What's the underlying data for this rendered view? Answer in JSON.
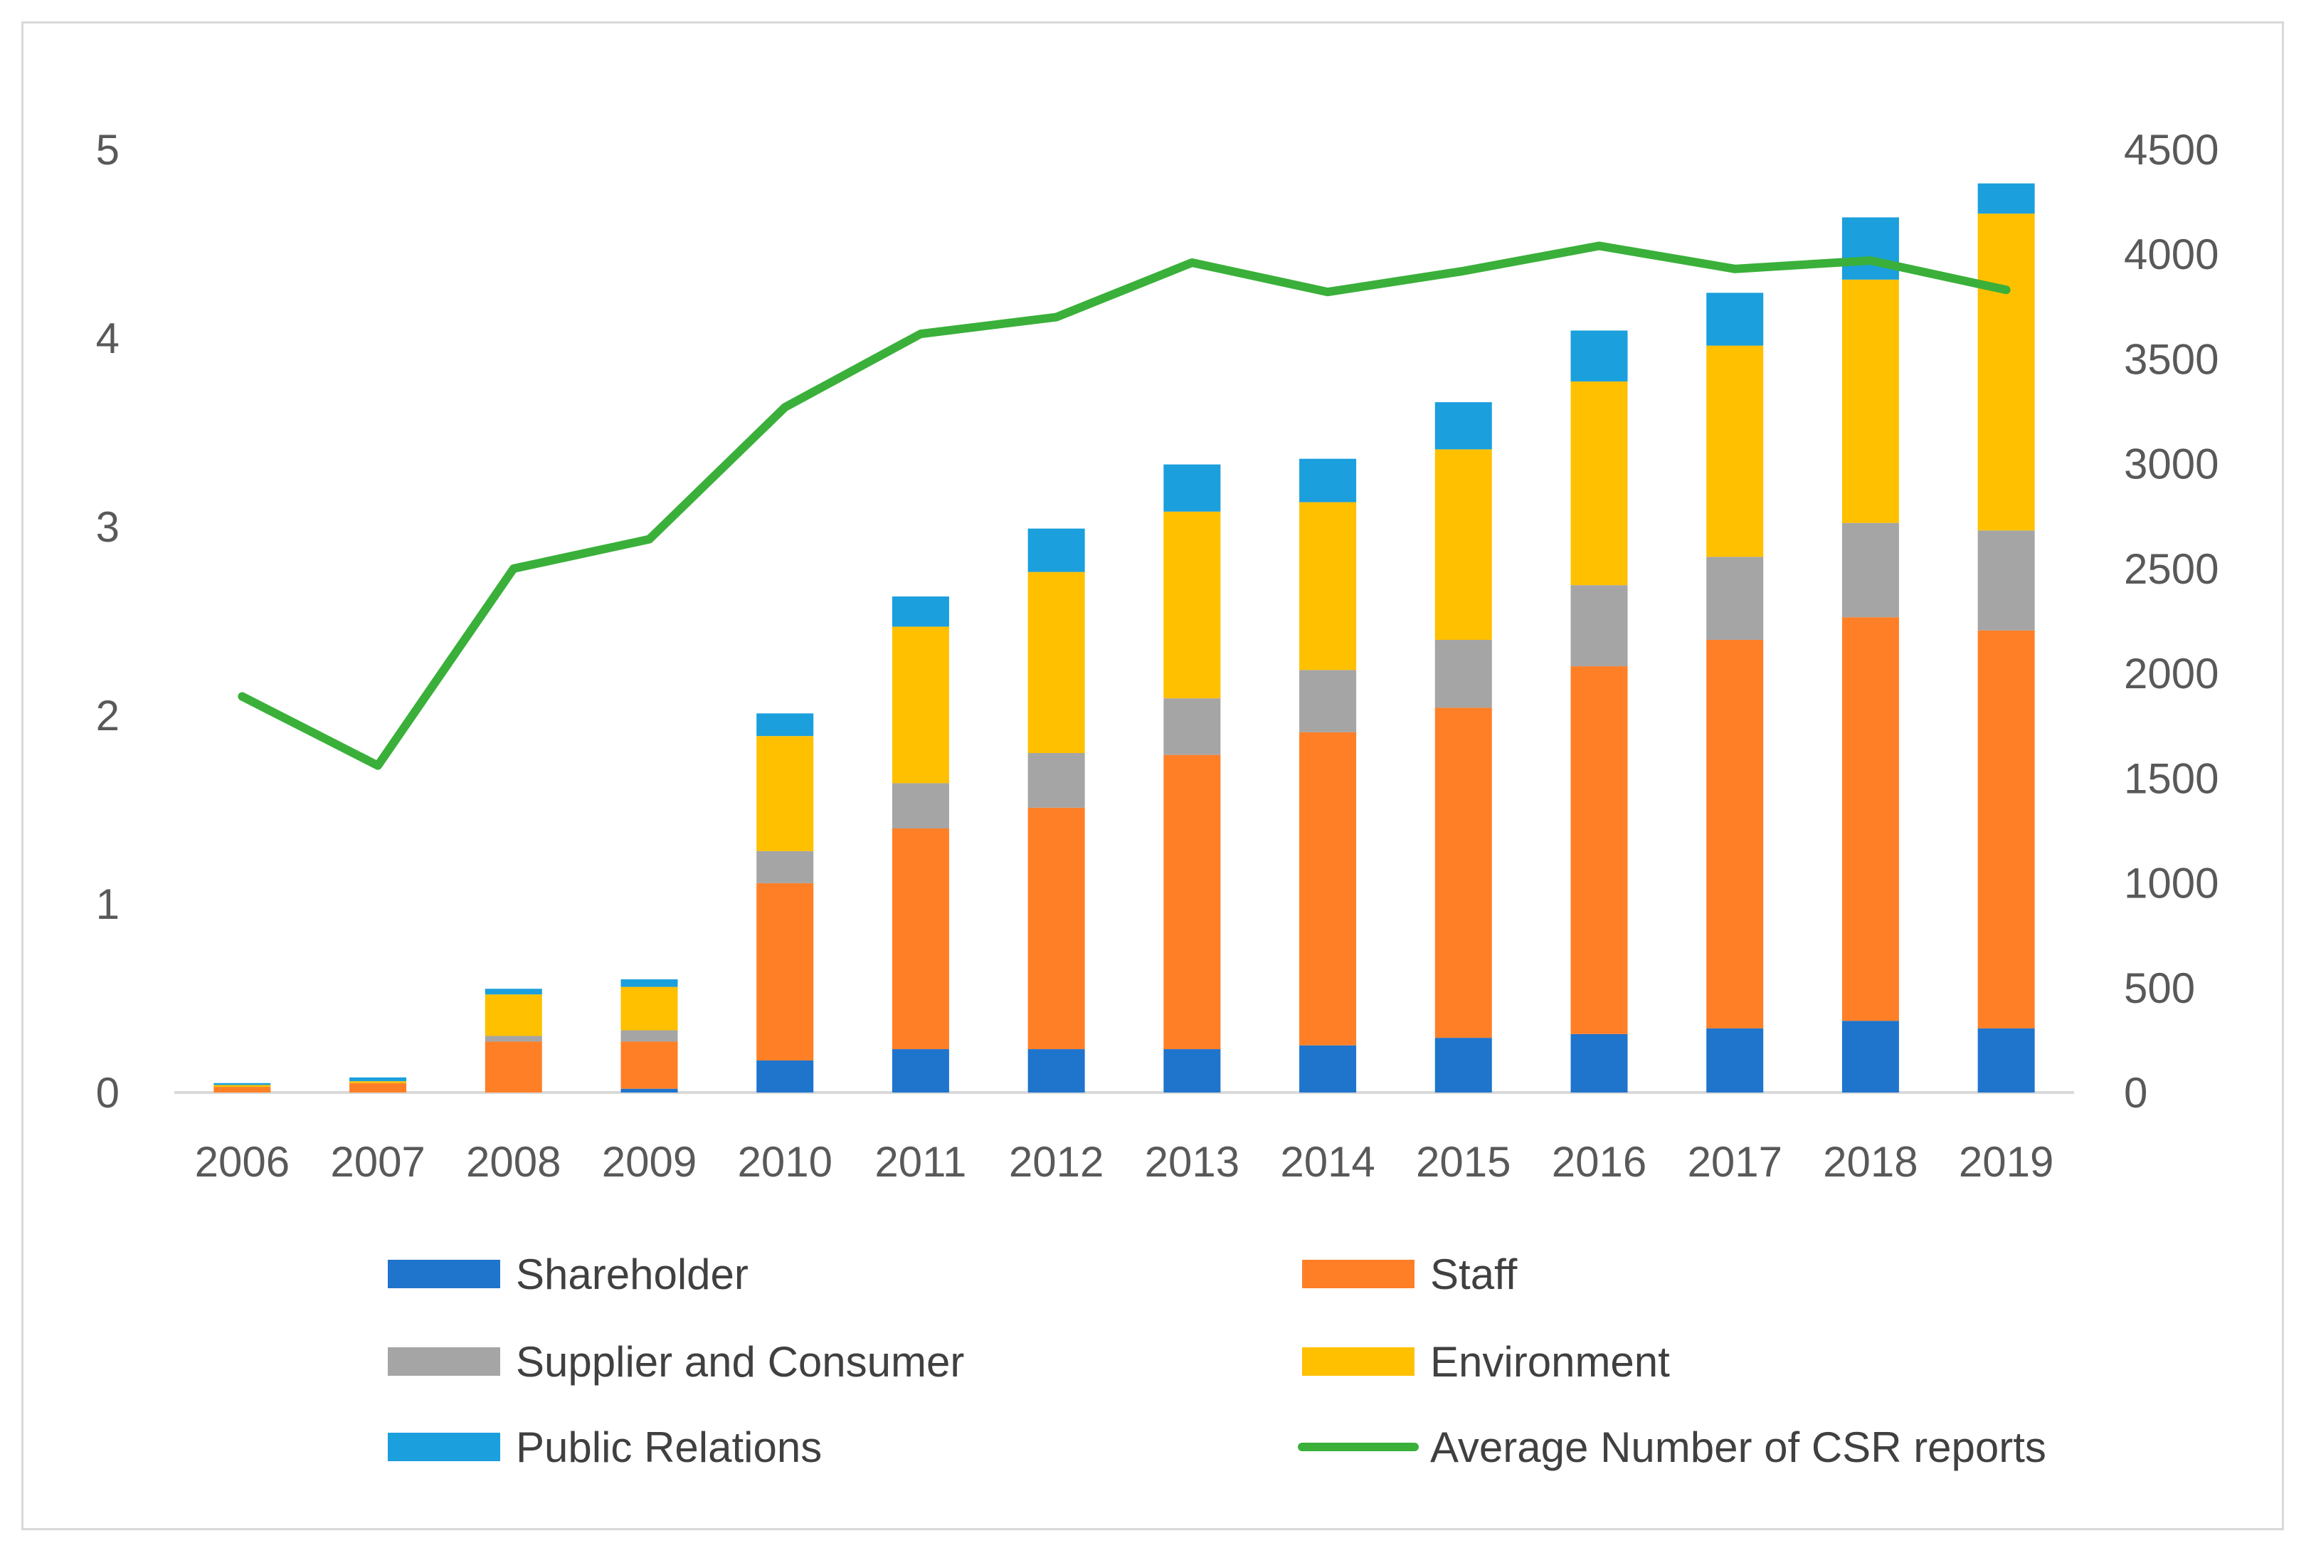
{
  "chart_data": {
    "type": "bar",
    "stacked": true,
    "title": "",
    "xlabel": "",
    "ylabel": "",
    "ylabel_right": "",
    "categories": [
      "2006",
      "2007",
      "2008",
      "2009",
      "2010",
      "2011",
      "2012",
      "2013",
      "2014",
      "2015",
      "2016",
      "2017",
      "2018",
      "2019"
    ],
    "ylim": [
      0,
      5
    ],
    "yticks": [
      "0",
      "1",
      "2",
      "3",
      "4",
      "5"
    ],
    "ylim_right": [
      0,
      4500
    ],
    "yticks_right": [
      "0",
      "500",
      "1000",
      "1500",
      "2000",
      "2500",
      "3000",
      "3500",
      "4000",
      "4500"
    ],
    "grid": false,
    "legend_position": "bottom",
    "series": [
      {
        "name": "Shareholder",
        "color": "#1f74cc",
        "axis": "left",
        "kind": "bar",
        "values": [
          0.0,
          0.0,
          0.0,
          0.02,
          0.17,
          0.23,
          0.23,
          0.23,
          0.25,
          0.29,
          0.31,
          0.34,
          0.38,
          0.34
        ]
      },
      {
        "name": "Staff",
        "color": "#ff7f27",
        "axis": "left",
        "kind": "bar",
        "values": [
          0.03,
          0.05,
          0.27,
          0.25,
          0.94,
          1.17,
          1.28,
          1.56,
          1.66,
          1.75,
          1.95,
          2.06,
          2.14,
          2.11
        ]
      },
      {
        "name": "Supplier and Consumer",
        "color": "#a5a5a5",
        "axis": "left",
        "kind": "bar",
        "values": [
          0.0,
          0.0,
          0.03,
          0.06,
          0.17,
          0.24,
          0.29,
          0.3,
          0.33,
          0.36,
          0.43,
          0.44,
          0.5,
          0.53
        ]
      },
      {
        "name": "Environment",
        "color": "#ffc000",
        "axis": "left",
        "kind": "bar",
        "values": [
          0.01,
          0.01,
          0.22,
          0.23,
          0.61,
          0.83,
          0.96,
          0.99,
          0.89,
          1.01,
          1.08,
          1.12,
          1.29,
          1.68
        ]
      },
      {
        "name": "Public Relations",
        "color": "#1b9fdd",
        "axis": "left",
        "kind": "bar",
        "values": [
          0.01,
          0.02,
          0.03,
          0.04,
          0.12,
          0.16,
          0.23,
          0.25,
          0.23,
          0.25,
          0.27,
          0.28,
          0.33,
          0.16
        ]
      },
      {
        "name": "Average Number of CSR reports",
        "color": "#3ab03a",
        "axis": "right",
        "kind": "line",
        "values": [
          1890,
          1560,
          2500,
          2640,
          3270,
          3620,
          3700,
          3960,
          3820,
          3920,
          4040,
          3930,
          3970,
          3830
        ]
      }
    ]
  }
}
